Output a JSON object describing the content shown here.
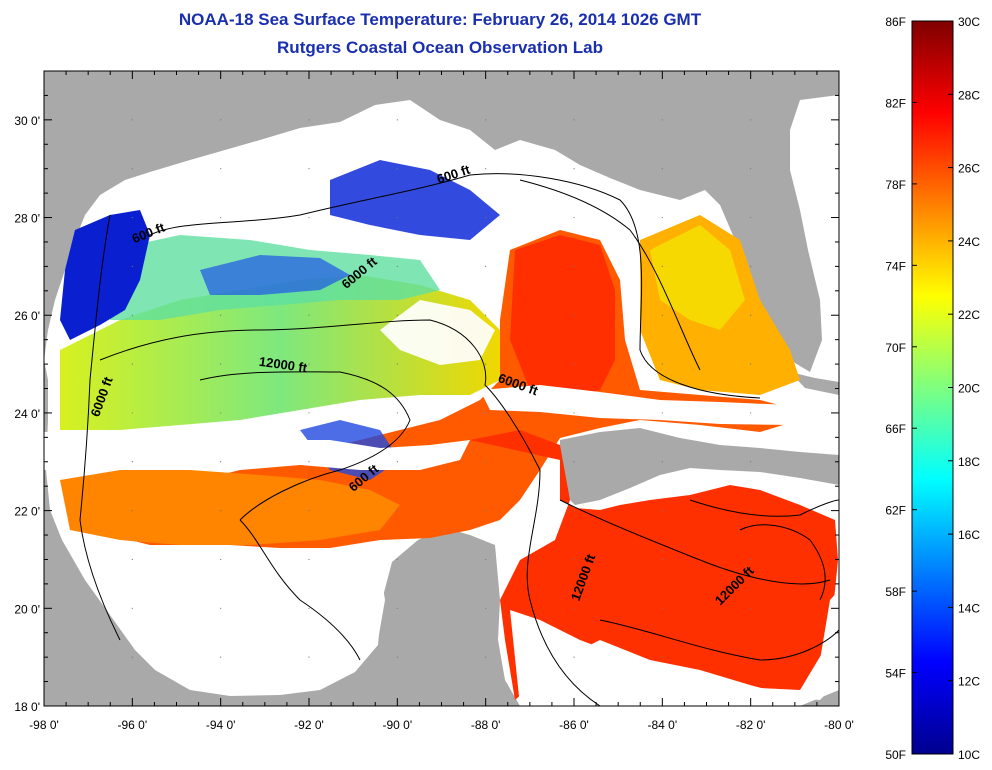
{
  "title": {
    "line1": "NOAA-18 Sea Surface Temperature:  February 26, 2014 1026 GMT",
    "line2": "Rutgers Coastal Ocean Observation Lab"
  },
  "map": {
    "lon_range": [
      -98,
      -80
    ],
    "lat_range": [
      18,
      31
    ],
    "x_ticks": [
      "-98 0'",
      "-96 0'",
      "-94 0'",
      "-92 0'",
      "-90 0'",
      "-88 0'",
      "-86 0'",
      "-84 0'",
      "-82 0'",
      "-80 0'"
    ],
    "y_ticks": [
      "18 0'",
      "20 0'",
      "22 0'",
      "24 0'",
      "26 0'",
      "28 0'",
      "30 0'"
    ],
    "contour_labels": [
      {
        "text": "600 ft",
        "lon": -88.7,
        "lat": 28.8
      },
      {
        "text": "600 ft",
        "lon": -95.6,
        "lat": 27.6
      },
      {
        "text": "6000 ft",
        "lon": -90.8,
        "lat": 26.8
      },
      {
        "text": "12000 ft",
        "lon": -92.6,
        "lat": 24.9
      },
      {
        "text": "6000 ft",
        "lon": -96.6,
        "lat": 24.3
      },
      {
        "text": "6000 ft",
        "lon": -87.3,
        "lat": 24.5
      },
      {
        "text": "600 ft",
        "lon": -90.7,
        "lat": 22.6
      },
      {
        "text": "12000 ft",
        "lon": -85.7,
        "lat": 20.6
      },
      {
        "text": "12000 ft",
        "lon": -82.3,
        "lat": 20.4
      }
    ],
    "colors": {
      "land": "#a9a9a9",
      "cloud": "#ffffff",
      "contour": "#000000"
    }
  },
  "colorbar": {
    "fahrenheit_labels": [
      "86F",
      "82F",
      "78F",
      "74F",
      "70F",
      "66F",
      "62F",
      "58F",
      "54F",
      "50F"
    ],
    "celsius_labels": [
      "30C",
      "28C",
      "26C",
      "24C",
      "22C",
      "20C",
      "18C",
      "16C",
      "14C",
      "12C",
      "10C"
    ],
    "range_c": [
      10,
      30
    ],
    "colors": [
      "#00008f",
      "#0000ff",
      "#007fff",
      "#00ffff",
      "#7fff7f",
      "#ffff00",
      "#ff7f00",
      "#ff0000",
      "#7f0000"
    ]
  }
}
